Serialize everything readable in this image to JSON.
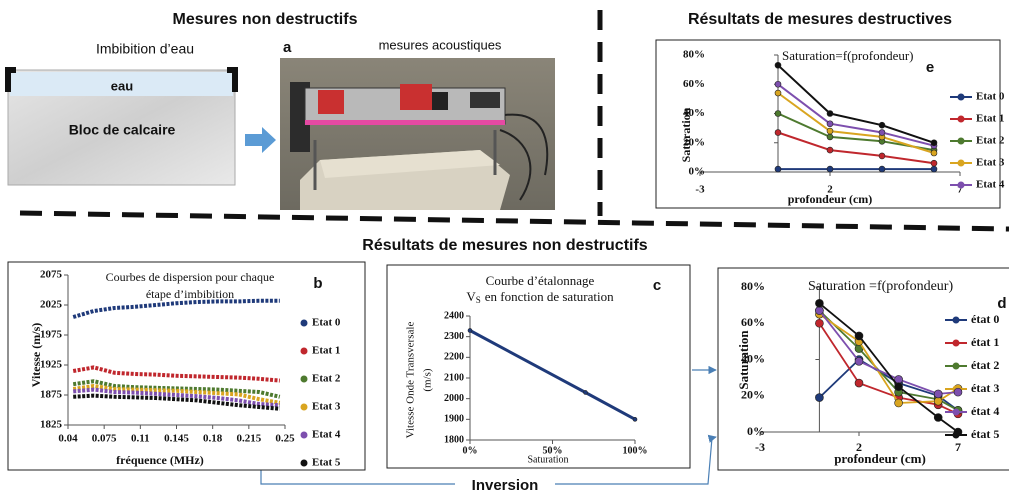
{
  "labels": {
    "heading_left": "Mesures non destructifs",
    "imbibition": "Imbibition  d’eau",
    "water": "eau",
    "block": "Bloc de calcaire",
    "panel_a": "a",
    "acoustic": "mesures acoustiques",
    "heading_right": "Résultats de mesures destructives",
    "heading_middle": "Résultats de mesures non destructifs",
    "inversion": "Inversion"
  },
  "chart_data": [
    {
      "type": "line",
      "title": "Saturation=f(profondeur)",
      "panel": "e",
      "xlabel": "profondeur (cm)",
      "ylabel": "Saturation",
      "xlim": [
        -3,
        7
      ],
      "xticks": [
        -3,
        2,
        7
      ],
      "ylim": [
        0,
        80
      ],
      "yticks": [
        {
          "value": 0,
          "label": "0%"
        },
        {
          "value": 20,
          "label": "20%"
        },
        {
          "value": 40,
          "label": "40%"
        },
        {
          "value": 60,
          "label": "60%"
        },
        {
          "value": 80,
          "label": "80%"
        }
      ],
      "x": [
        0,
        2,
        4,
        6
      ],
      "series": [
        {
          "name": "Etat 0",
          "color": "#1f3a7a",
          "values": [
            2,
            2,
            2,
            2
          ]
        },
        {
          "name": "Etat 1",
          "color": "#c0272d",
          "values": [
            27,
            15,
            11,
            6
          ]
        },
        {
          "name": "Etat 2",
          "color": "#4e7a2f",
          "values": [
            40,
            24,
            21,
            15
          ]
        },
        {
          "name": "Etat 3",
          "color": "#d9a520",
          "values": [
            54,
            28,
            24,
            13
          ]
        },
        {
          "name": "Etat 4",
          "color": "#7d4fae",
          "values": [
            60,
            33,
            27,
            18
          ]
        },
        {
          "color": "#111111",
          "values": [
            73,
            40,
            32,
            20
          ]
        }
      ]
    },
    {
      "type": "line",
      "title": [
        "Courbes de dispersion pour chaque",
        "étape d’imbibition"
      ],
      "panel": "b",
      "xlabel": "fréquence (MHz)",
      "ylabel": "Vitesse (m/s)",
      "xlim": [
        0.04,
        0.25
      ],
      "xticks": [
        0.04,
        0.075,
        0.11,
        0.145,
        0.18,
        0.215,
        0.25
      ],
      "ylim": [
        1825,
        2075
      ],
      "yticks": [
        1825,
        1875,
        1925,
        1975,
        2025,
        2075
      ],
      "x": [
        0.045,
        0.065,
        0.085,
        0.105,
        0.125,
        0.145,
        0.165,
        0.185,
        0.205,
        0.225,
        0.245
      ],
      "series": [
        {
          "name": "Etat 0",
          "color": "#1f3a7a",
          "values": [
            2005,
            2015,
            2020,
            2022,
            2025,
            2028,
            2030,
            2031,
            2031,
            2032,
            2032
          ]
        },
        {
          "name": "Etat 1",
          "color": "#c0272d",
          "values": [
            1915,
            1921,
            1912,
            1910,
            1909,
            1907,
            1906,
            1905,
            1904,
            1902,
            1899
          ]
        },
        {
          "name": "Etat 2",
          "color": "#4e7a2f",
          "values": [
            1893,
            1898,
            1890,
            1888,
            1887,
            1886,
            1885,
            1884,
            1882,
            1880,
            1872
          ]
        },
        {
          "name": "Etat 3",
          "color": "#d9a520",
          "values": [
            1885,
            1890,
            1885,
            1884,
            1883,
            1882,
            1880,
            1878,
            1876,
            1868,
            1862
          ]
        },
        {
          "name": "Etat 4",
          "color": "#7d4fae",
          "values": [
            1881,
            1884,
            1880,
            1879,
            1877,
            1875,
            1873,
            1870,
            1866,
            1860,
            1858
          ]
        },
        {
          "name": "Etat 5",
          "color": "#111111",
          "values": [
            1872,
            1874,
            1872,
            1871,
            1870,
            1868,
            1866,
            1862,
            1858,
            1855,
            1852
          ]
        }
      ]
    },
    {
      "type": "line",
      "title": "Courbe d’étalonnage",
      "subtitle": {
        "symbol": "V",
        "subscript": "S",
        "text": "en fonction de saturation"
      },
      "panel": "c",
      "xlabel": "Saturation",
      "ylabel": [
        "Vitesse Onde Transversale",
        "(m/s)"
      ],
      "xlim": [
        0,
        100
      ],
      "xticks": [
        {
          "value": 0,
          "label": "0%"
        },
        {
          "value": 50,
          "label": "50%"
        },
        {
          "value": 100,
          "label": "100%"
        }
      ],
      "ylim": [
        1800,
        2400
      ],
      "yticks": [
        1800,
        1900,
        2000,
        2100,
        2200,
        2300,
        2400
      ],
      "x": [
        0,
        70,
        100
      ],
      "series": [
        {
          "color": "#1f3a7a",
          "values": [
            2330,
            2030,
            1900
          ]
        }
      ]
    },
    {
      "type": "line",
      "title": "Saturation =f(profondeur)",
      "panel": "d",
      "xlabel": "profondeur (cm)",
      "ylabel": "Saturation",
      "xlim": [
        -3,
        7
      ],
      "xticks": [
        -3,
        2,
        7
      ],
      "ylim": [
        0,
        80
      ],
      "yticks": [
        {
          "value": 0,
          "label": "0%"
        },
        {
          "value": 20,
          "label": "20%"
        },
        {
          "value": 40,
          "label": "40%"
        },
        {
          "value": 60,
          "label": "60%"
        },
        {
          "value": 80,
          "label": "80%"
        }
      ],
      "x": [
        0,
        2,
        4,
        6,
        7
      ],
      "series": [
        {
          "name": "état 0",
          "color": "#1f3a7a",
          "values": [
            19,
            40,
            27,
            20,
            12
          ]
        },
        {
          "name": "état 1",
          "color": "#c0272d",
          "values": [
            60,
            27,
            19,
            15,
            10
          ]
        },
        {
          "name": "état 2",
          "color": "#4e7a2f",
          "values": [
            67,
            46,
            22,
            18,
            12
          ]
        },
        {
          "name": "état 3",
          "color": "#d9a520",
          "values": [
            65,
            50,
            16,
            17,
            24
          ]
        },
        {
          "name": "état 4",
          "color": "#7d4fae",
          "values": [
            67,
            39,
            29,
            21,
            22
          ]
        },
        {
          "name": "état 5",
          "color": "#111111",
          "values": [
            71,
            53,
            25,
            8,
            0
          ]
        }
      ]
    }
  ]
}
